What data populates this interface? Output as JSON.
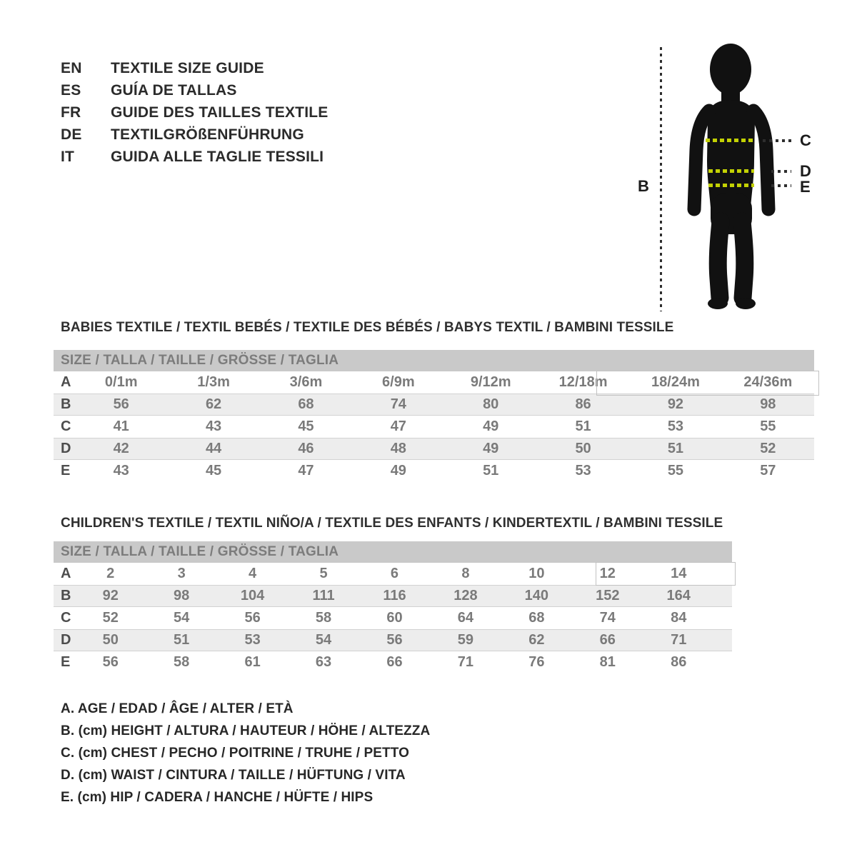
{
  "languages": [
    {
      "code": "EN",
      "title": "TEXTILE SIZE GUIDE"
    },
    {
      "code": "ES",
      "title": "GUÍA DE TALLAS"
    },
    {
      "code": "FR",
      "title": "GUIDE DES TAILLES TEXTILE"
    },
    {
      "code": "DE",
      "title": "TEXTILGRÖßENFÜHRUNG"
    },
    {
      "code": "IT",
      "title": "GUIDA ALLE TAGLIE TESSILI"
    }
  ],
  "figure": {
    "labels": {
      "b": "B",
      "c": "C",
      "d": "D",
      "e": "E"
    }
  },
  "babies": {
    "heading": "BABIES TEXTILE / TEXTIL BEBÉS / TEXTILE DES BÉBÉS / BABYS TEXTIL  / BAMBINI TESSILE",
    "size_header": "SIZE / TALLA / TAILLE / GRÖSSE / TAGLIA",
    "rows": [
      {
        "label": "A",
        "values": [
          "0/1m",
          "1/3m",
          "3/6m",
          "6/9m",
          "9/12m",
          "12/18m",
          "18/24m",
          "24/36m"
        ]
      },
      {
        "label": "B",
        "values": [
          56,
          62,
          68,
          74,
          80,
          86,
          92,
          98
        ]
      },
      {
        "label": "C",
        "values": [
          41,
          43,
          45,
          47,
          49,
          51,
          53,
          55
        ]
      },
      {
        "label": "D",
        "values": [
          42,
          44,
          46,
          48,
          49,
          50,
          51,
          52
        ]
      },
      {
        "label": "E",
        "values": [
          43,
          45,
          47,
          49,
          51,
          53,
          55,
          57
        ]
      }
    ]
  },
  "children": {
    "heading": "CHILDREN'S TEXTILE / TEXTIL NIÑO/A / TEXTILE DES ENFANTS / KINDERTEXTIL / BAMBINI TESSILE",
    "size_header": "SIZE / TALLA / TAILLE / GRÖSSE / TAGLIA",
    "rows": [
      {
        "label": "A",
        "values": [
          2,
          3,
          4,
          5,
          6,
          8,
          10,
          12,
          14
        ]
      },
      {
        "label": "B",
        "values": [
          92,
          98,
          104,
          111,
          116,
          128,
          140,
          152,
          164
        ]
      },
      {
        "label": "C",
        "values": [
          52,
          54,
          56,
          58,
          60,
          64,
          68,
          74,
          84
        ]
      },
      {
        "label": "D",
        "values": [
          50,
          51,
          53,
          54,
          56,
          59,
          62,
          66,
          71
        ]
      },
      {
        "label": "E",
        "values": [
          56,
          58,
          61,
          63,
          66,
          71,
          76,
          81,
          86
        ]
      }
    ]
  },
  "legend": [
    "A. AGE / EDAD / ÂGE / ALTER / ETÀ",
    "B. (cm) HEIGHT / ALTURA / HAUTEUR / HÖHE / ALTEZZA",
    "C. (cm) CHEST / PECHO / POITRINE / TRUHE / PETTO",
    "D. (cm) WAIST / CINTURA / TAILLE / HÜFTUNG / VITA",
    "E. (cm) HIP / CADERA / HANCHE / HÜFTE / HIPS"
  ],
  "colors": {
    "accent": "#c3d103",
    "header_bar_bg": "#c9c9c9",
    "stripe_row_bg": "#ededed",
    "silhouette": "#111111",
    "text_dark": "#2b2b2b",
    "table_text": "#7a7a7a"
  }
}
